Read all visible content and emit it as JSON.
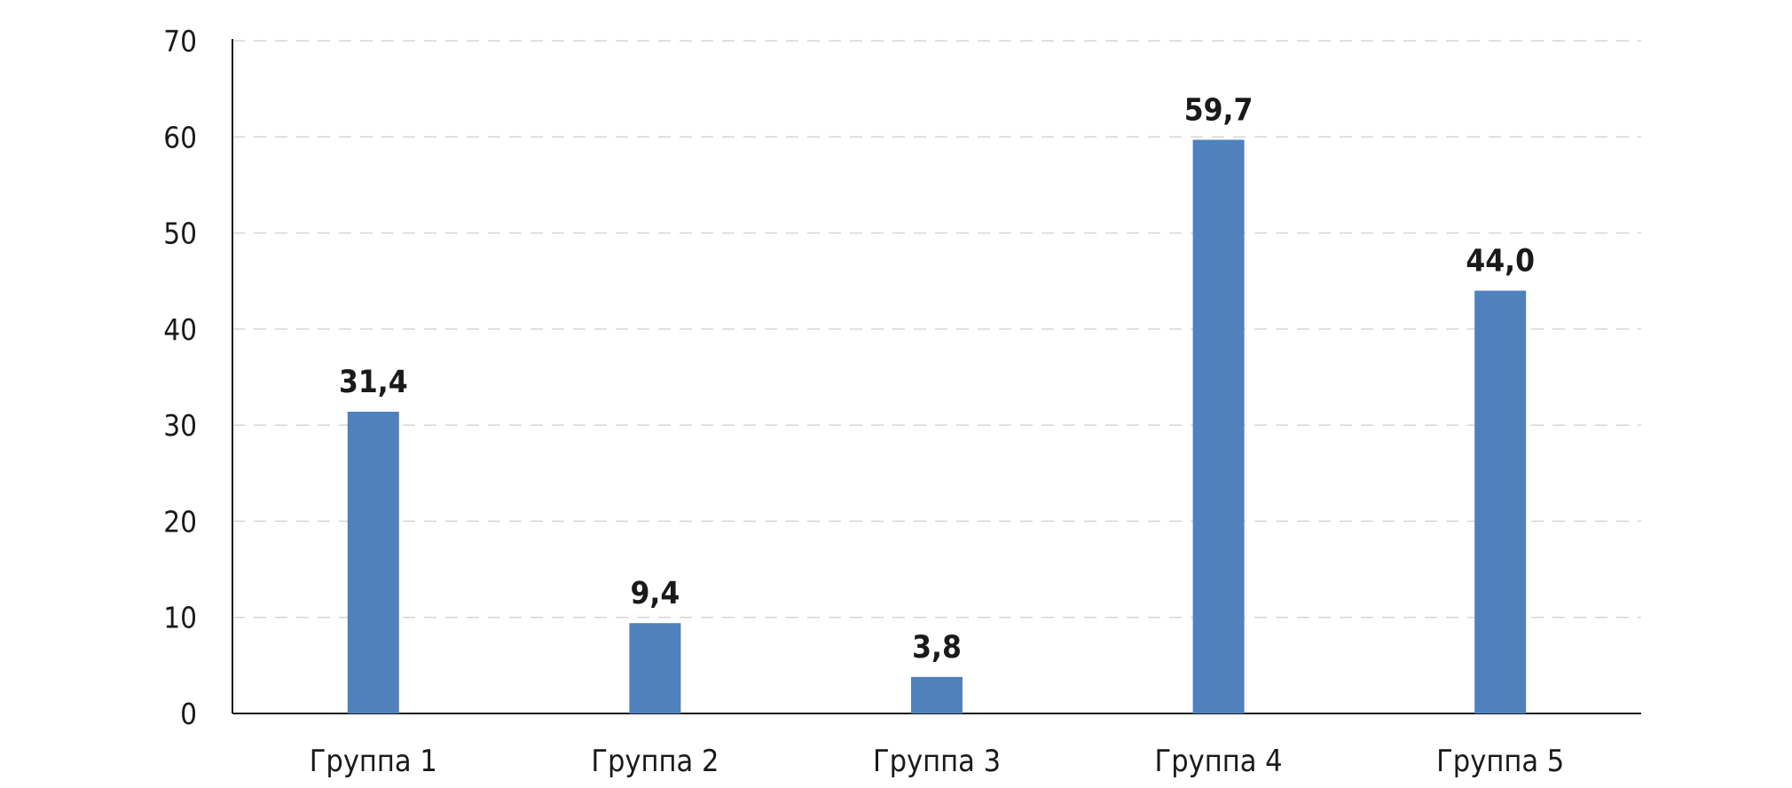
{
  "chart_data": {
    "type": "bar",
    "title": "",
    "xlabel": "",
    "ylabel": "",
    "categories": [
      "Группа 1",
      "Группа 2",
      "Группа 3",
      "Группа 4",
      "Группа 5"
    ],
    "values": [
      31.4,
      9.4,
      3.8,
      59.7,
      44.0
    ],
    "data_labels": [
      "31,4",
      "9,4",
      "3,8",
      "59,7",
      "44,0"
    ],
    "y_ticks": [
      0,
      10,
      20,
      30,
      40,
      50,
      60,
      70
    ],
    "ylim": [
      0,
      70
    ],
    "grid": true,
    "legend": "none",
    "bar_color": "#4f81bd"
  }
}
